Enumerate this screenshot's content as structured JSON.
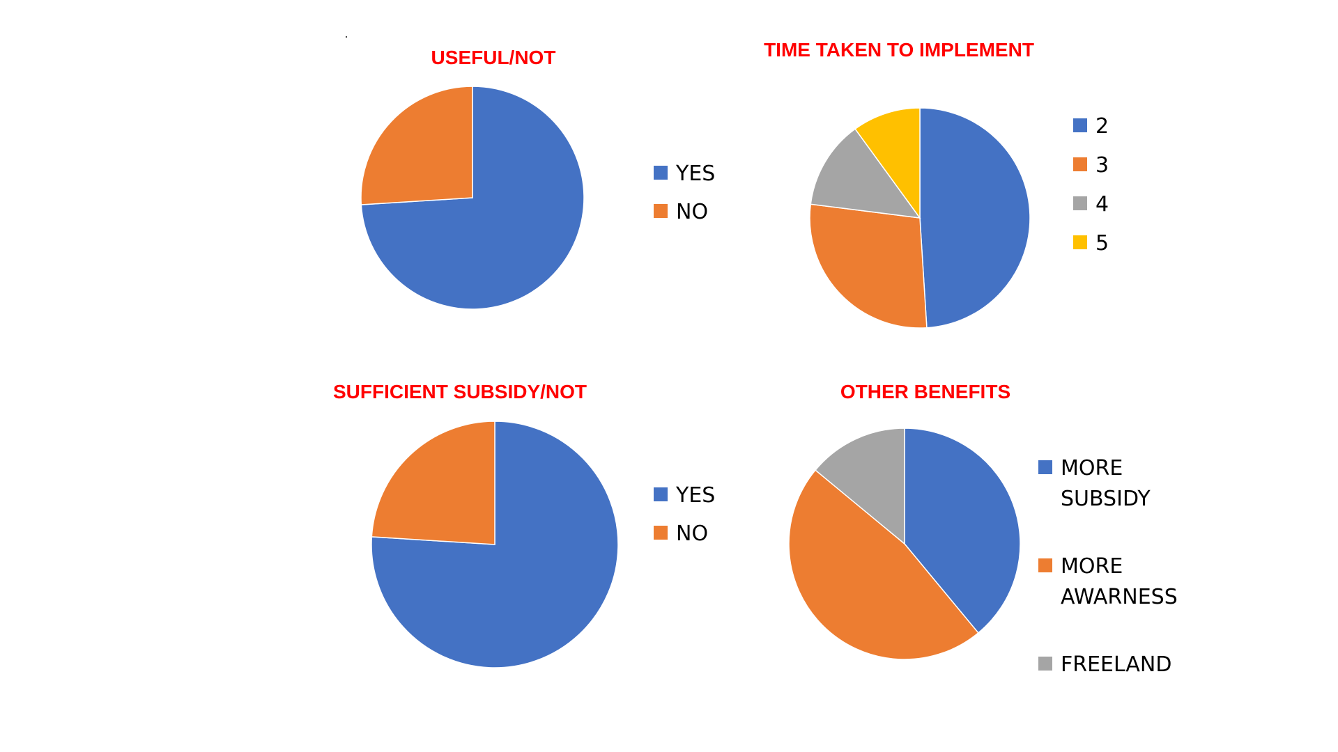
{
  "chart_data": [
    {
      "type": "pie",
      "title": "USEFUL/NOT",
      "categories": [
        "YES",
        "NO"
      ],
      "values": [
        74,
        26
      ],
      "colors": [
        "#4472C4",
        "#ED7D31"
      ],
      "legend_position": "right"
    },
    {
      "type": "pie",
      "title": "TIME TAKEN TO IMPLEMENT",
      "categories": [
        "2",
        "3",
        "4",
        "5"
      ],
      "values": [
        49,
        28,
        13,
        10
      ],
      "colors": [
        "#4472C4",
        "#ED7D31",
        "#A5A5A5",
        "#FFC000"
      ],
      "legend_position": "right"
    },
    {
      "type": "pie",
      "title": "SUFFICIENT SUBSIDY/NOT",
      "categories": [
        "YES",
        "NO"
      ],
      "values": [
        76,
        24
      ],
      "colors": [
        "#4472C4",
        "#ED7D31"
      ],
      "legend_position": "right"
    },
    {
      "type": "pie",
      "title": "OTHER BENEFITS",
      "categories": [
        "MORE\nSUBSIDY",
        "MORE\nAWARNESS",
        "FREELAND"
      ],
      "values": [
        39,
        47,
        14
      ],
      "colors": [
        "#4472C4",
        "#ED7D31",
        "#A5A5A5"
      ],
      "legend_position": "right"
    }
  ]
}
